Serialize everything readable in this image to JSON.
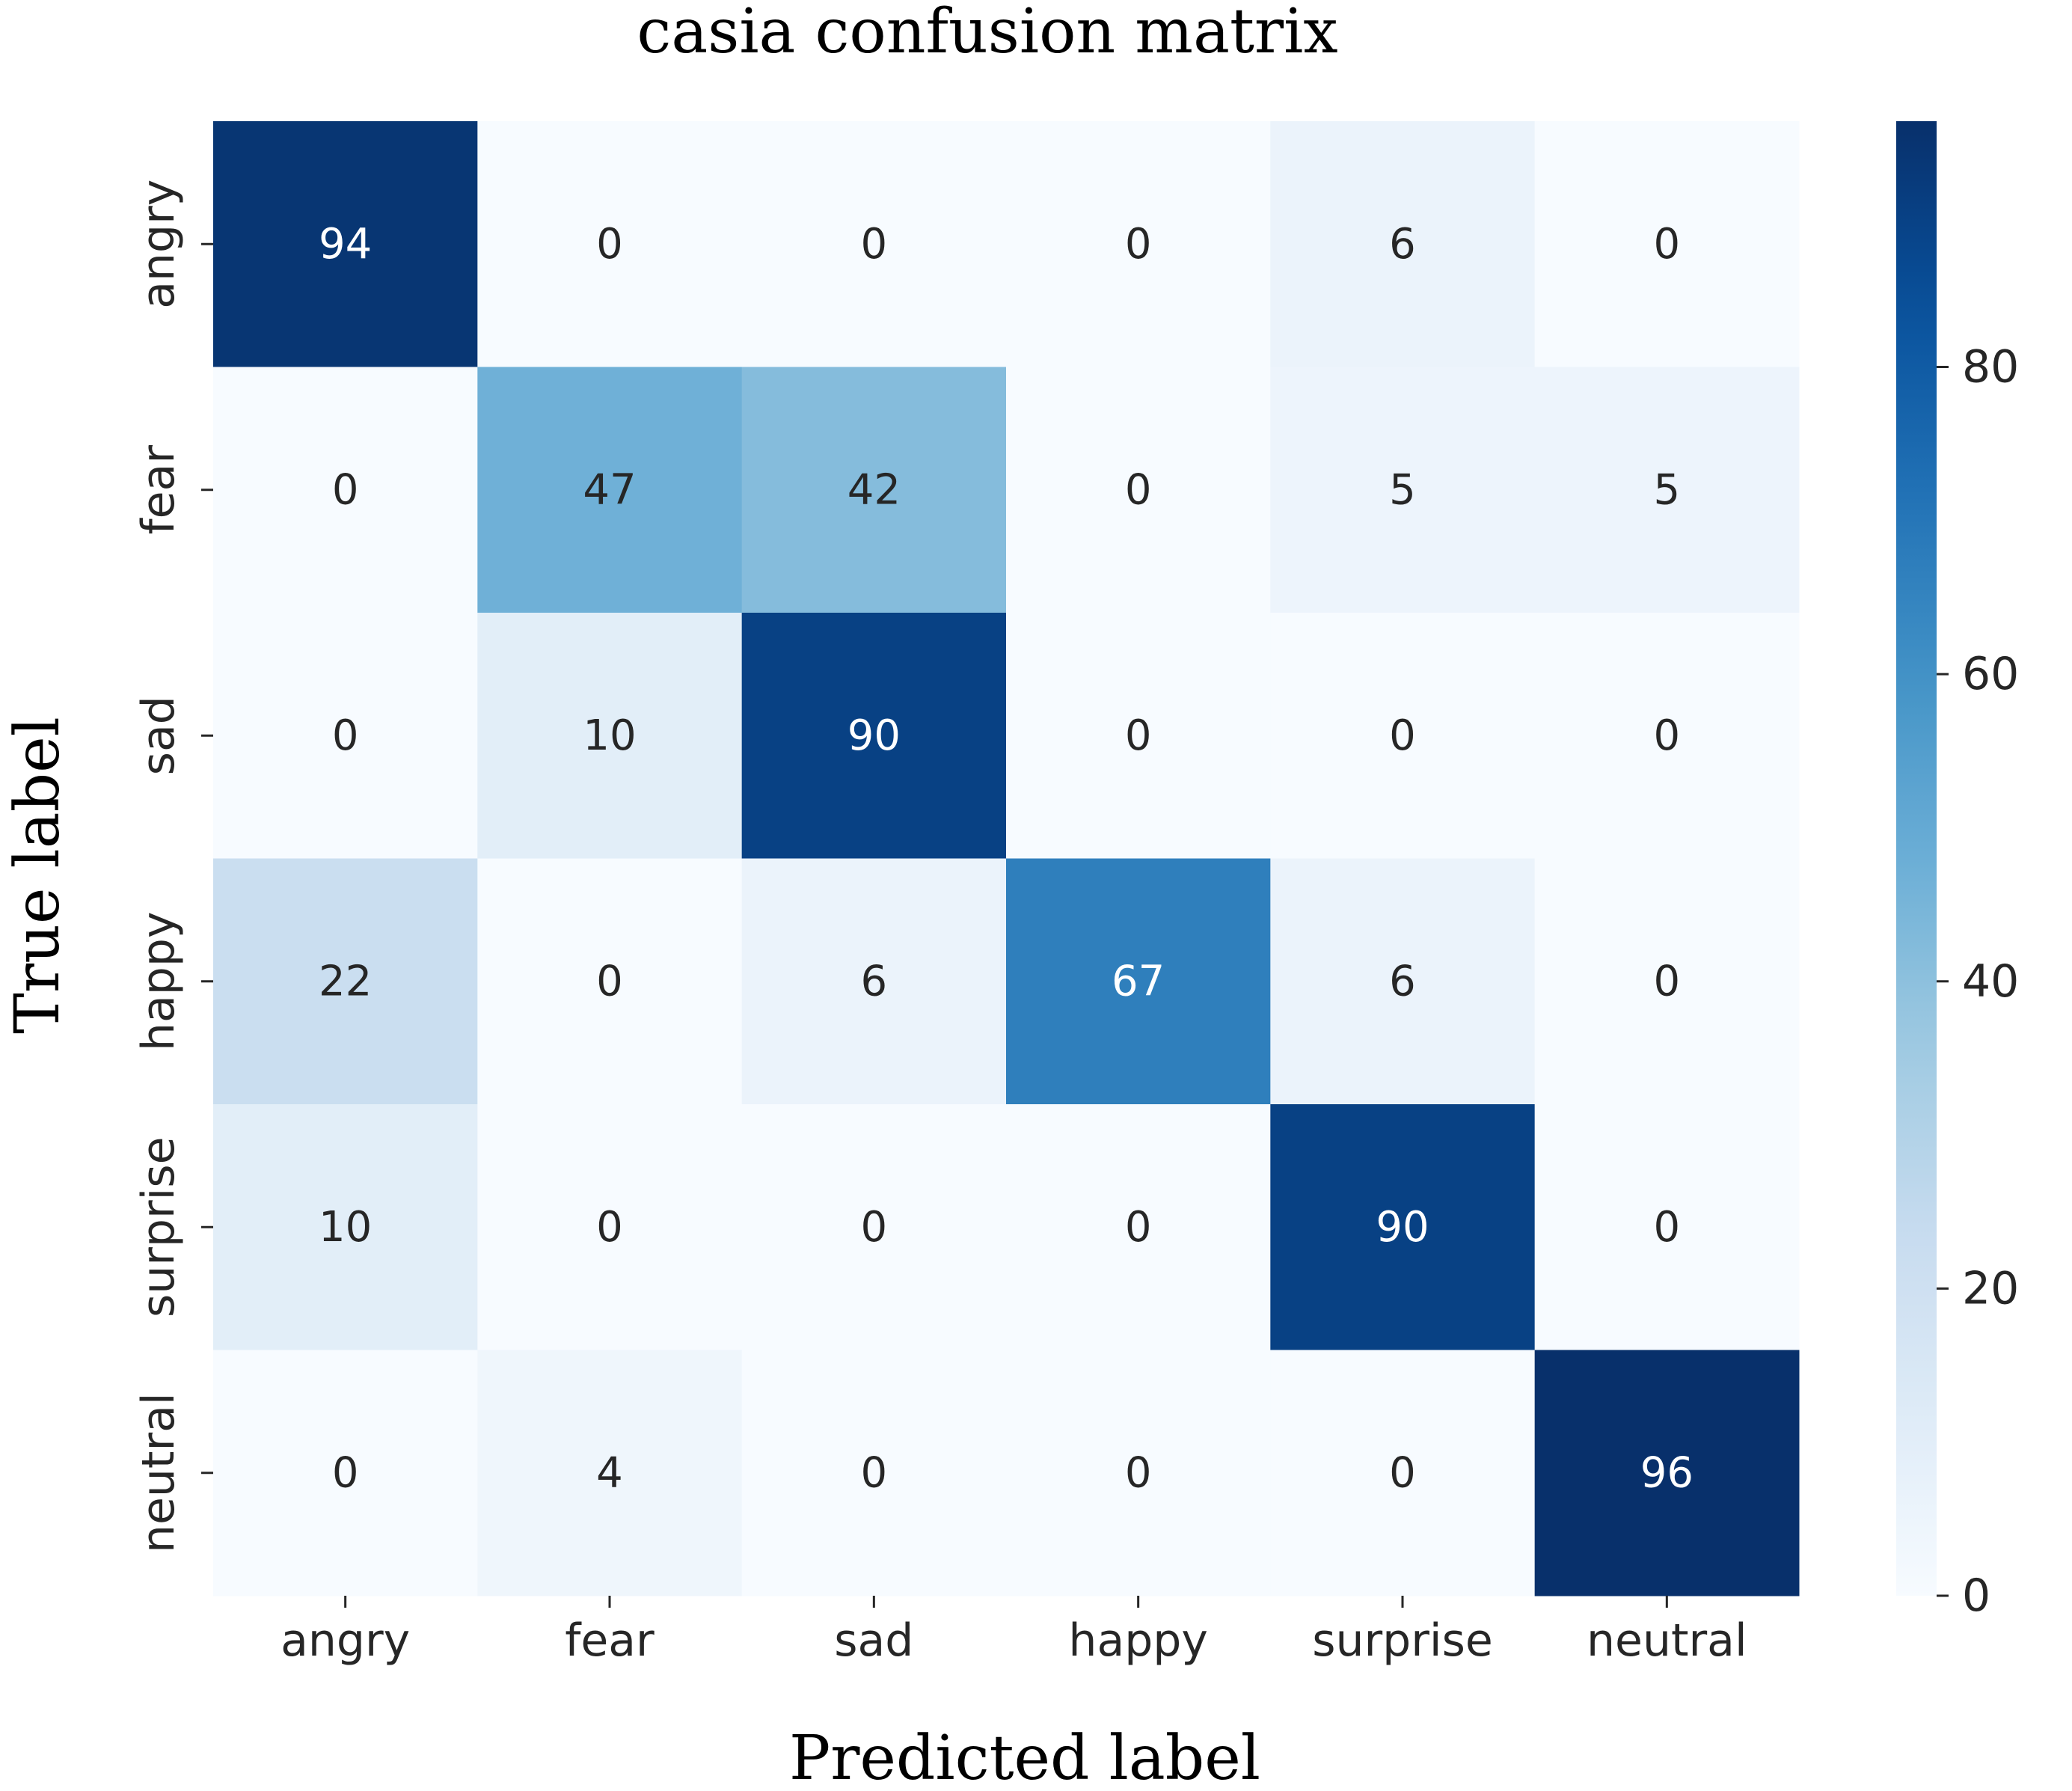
{
  "chart_data": {
    "type": "heatmap",
    "title": "casia confusion matrix",
    "xlabel": "Predicted label",
    "ylabel": "True label",
    "x_categories": [
      "angry",
      "fear",
      "sad",
      "happy",
      "surprise",
      "neutral"
    ],
    "y_categories": [
      "angry",
      "fear",
      "sad",
      "happy",
      "surprise",
      "neutral"
    ],
    "values": [
      [
        94,
        0,
        0,
        0,
        6,
        0
      ],
      [
        0,
        47,
        42,
        0,
        5,
        5
      ],
      [
        0,
        10,
        90,
        0,
        0,
        0
      ],
      [
        22,
        0,
        6,
        67,
        6,
        0
      ],
      [
        10,
        0,
        0,
        0,
        90,
        0
      ],
      [
        0,
        4,
        0,
        0,
        0,
        96
      ]
    ],
    "colormap": "Blues",
    "vmin": 0,
    "vmax": 96,
    "colorbar_ticks": [
      0,
      20,
      40,
      60,
      80
    ],
    "colorbar_tick_labels": [
      "0",
      "20",
      "40",
      "60",
      "80"
    ]
  }
}
